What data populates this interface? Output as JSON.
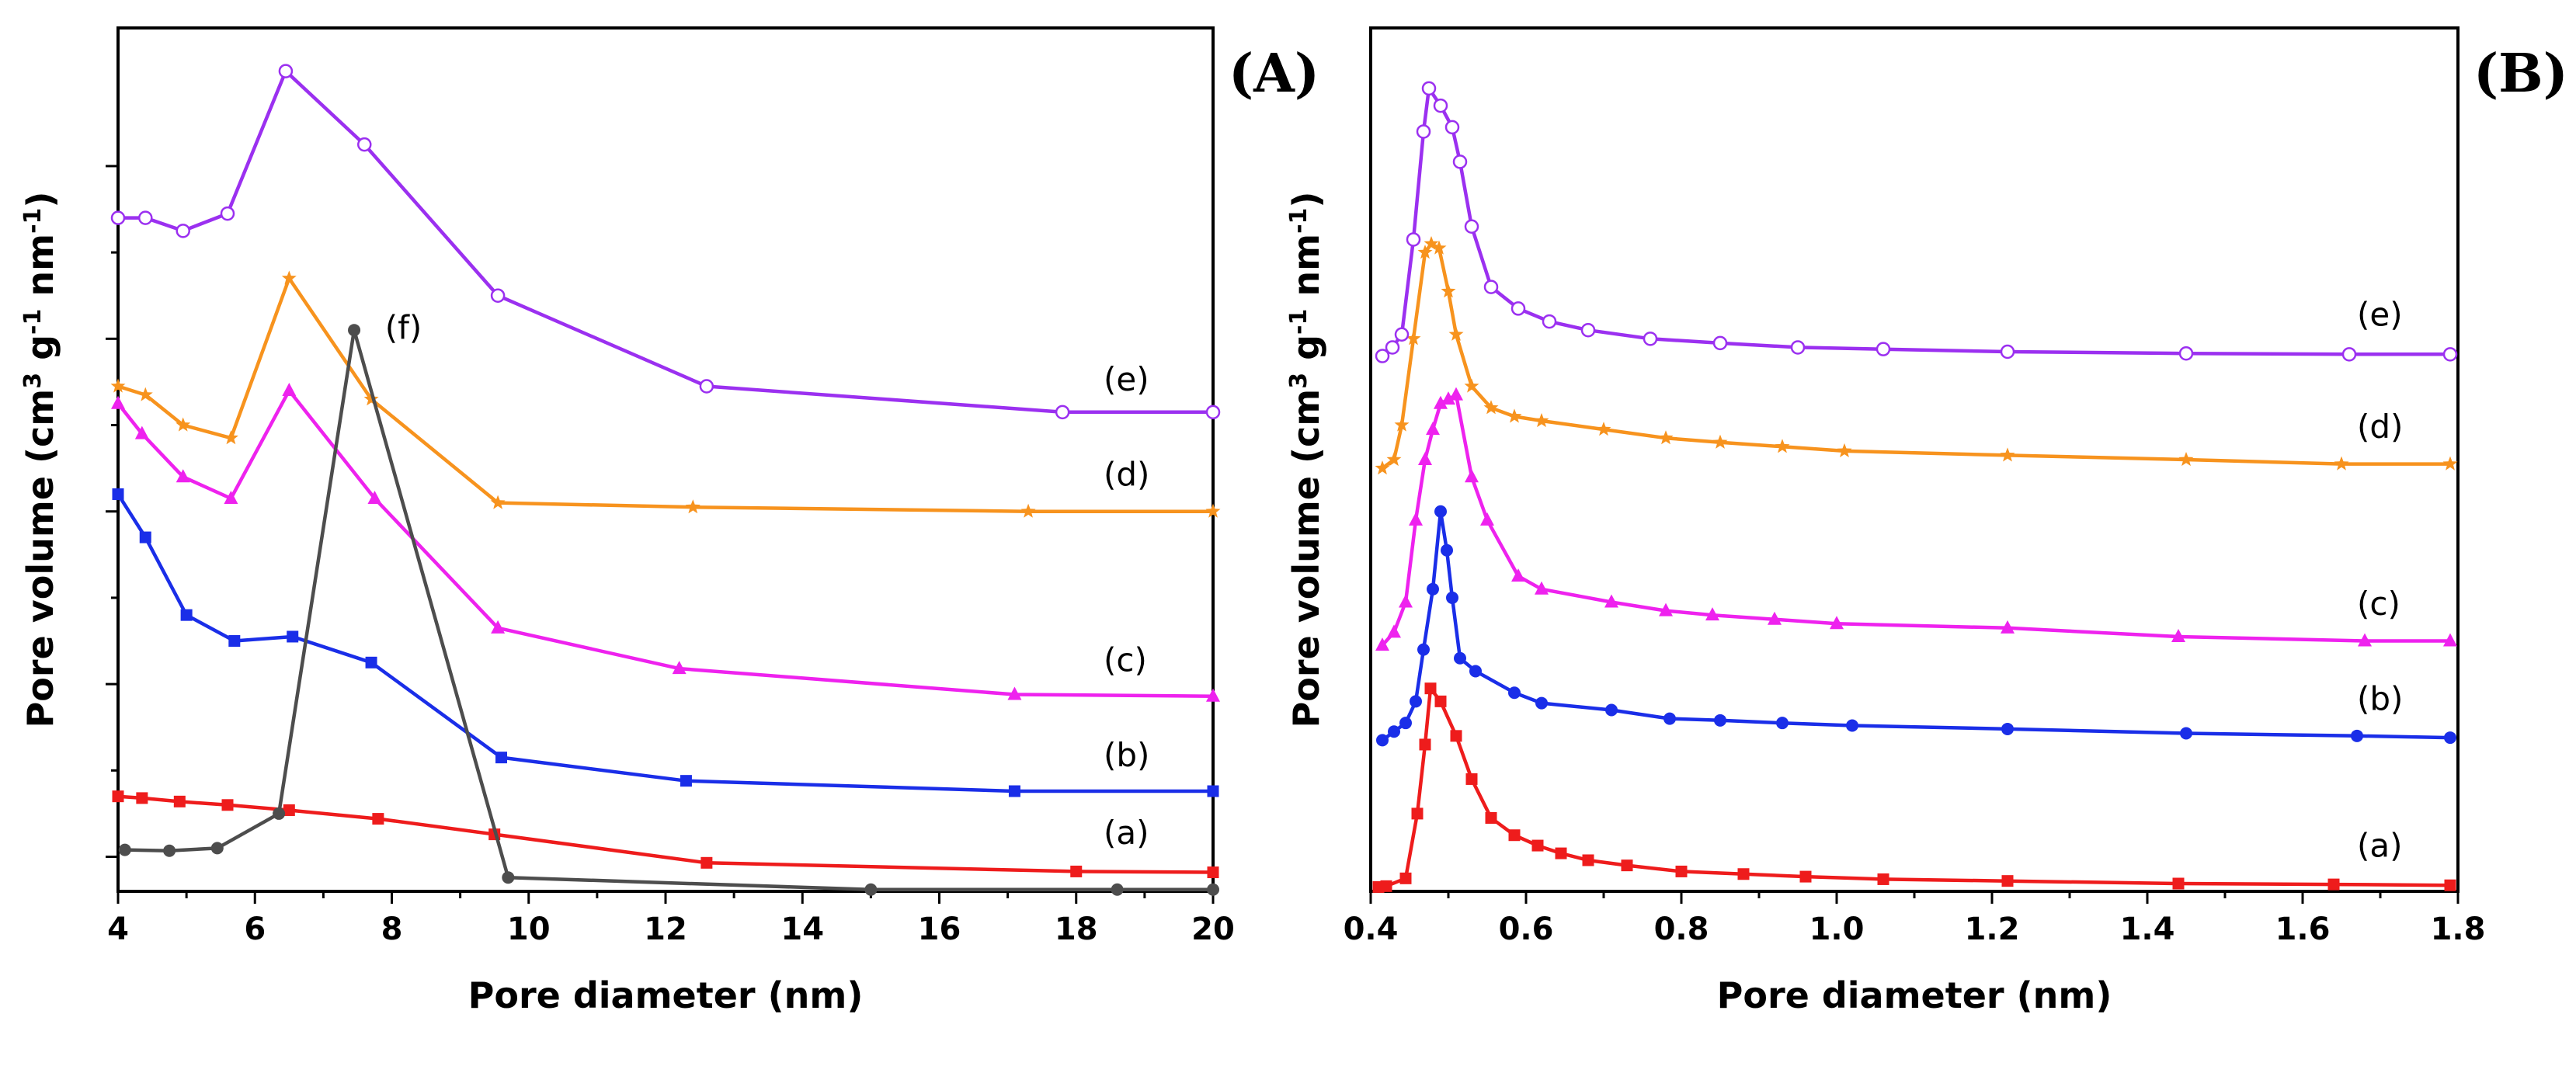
{
  "chart_data": [
    {
      "panel": "(A)",
      "type": "line",
      "xlabel": "Pore diameter (nm)",
      "ylabel": "Pore volume (cm³ g⁻¹ nm⁻¹)",
      "ylabel_parts": [
        "Pore volume (cm",
        "3",
        " g",
        "-1",
        " nm",
        "-1",
        ")"
      ],
      "xlim": [
        4,
        20
      ],
      "ylim": [
        0,
        100
      ],
      "xticks": [
        4,
        6,
        8,
        10,
        12,
        14,
        16,
        18,
        20
      ],
      "xtick_labels": [
        "4",
        "6",
        "8",
        "10",
        "12",
        "14",
        "16",
        "18",
        "20"
      ],
      "yticks_major": [
        4,
        24,
        44,
        64,
        84
      ],
      "ytick_labels_visible": false,
      "series": [
        {
          "name": "(a)",
          "color": "#ee1c1c",
          "marker": "square",
          "x": [
            4.0,
            4.35,
            4.9,
            5.6,
            6.5,
            7.8,
            9.5,
            12.6,
            18.0,
            20.0
          ],
          "y": [
            11.0,
            10.8,
            10.4,
            10.0,
            9.4,
            8.4,
            6.6,
            3.3,
            2.3,
            2.2
          ]
        },
        {
          "name": "(b)",
          "color": "#1a2ee8",
          "marker": "square",
          "x": [
            4.0,
            4.4,
            5.0,
            5.7,
            6.55,
            7.7,
            9.6,
            12.3,
            17.1,
            20.0
          ],
          "y": [
            46.0,
            41.0,
            32.0,
            29.0,
            29.5,
            26.5,
            15.5,
            12.8,
            11.6,
            11.6
          ]
        },
        {
          "name": "(c)",
          "color": "#ee22ee",
          "marker": "triangle",
          "x": [
            4.0,
            4.35,
            4.95,
            5.65,
            6.5,
            7.75,
            9.55,
            12.2,
            17.1,
            20.0
          ],
          "y": [
            56.5,
            53.0,
            48.0,
            45.5,
            58.0,
            45.5,
            30.5,
            25.8,
            22.8,
            22.6
          ]
        },
        {
          "name": "(d)",
          "color": "#f7931e",
          "marker": "star",
          "x": [
            4.0,
            4.4,
            4.95,
            5.65,
            6.5,
            7.7,
            9.55,
            12.4,
            17.3,
            20.0
          ],
          "y": [
            58.5,
            57.5,
            54.0,
            52.5,
            71.0,
            57.0,
            45.0,
            44.5,
            44.0,
            44.0
          ]
        },
        {
          "name": "(e)",
          "color": "#9b30f0",
          "marker": "open-circle",
          "x": [
            4.0,
            4.4,
            4.95,
            5.6,
            6.45,
            7.6,
            9.55,
            12.6,
            17.8,
            20.0
          ],
          "y": [
            78.0,
            78.0,
            76.5,
            78.5,
            95.0,
            86.5,
            69.0,
            58.5,
            55.5,
            55.5
          ]
        },
        {
          "name": "(f)",
          "color": "#4d4d4d",
          "marker": "circle",
          "x": [
            4.1,
            4.75,
            5.45,
            6.35,
            7.45,
            9.7,
            15.0,
            18.6,
            20.0
          ],
          "y": [
            4.8,
            4.7,
            5.0,
            9.0,
            65.0,
            1.6,
            0.2,
            0.2,
            0.2
          ]
        }
      ],
      "curve_labels": [
        {
          "text": "(a)",
          "x": 18.4,
          "y": 5.5
        },
        {
          "text": "(b)",
          "x": 18.4,
          "y": 14.5
        },
        {
          "text": "(c)",
          "x": 18.4,
          "y": 25.5
        },
        {
          "text": "(d)",
          "x": 18.4,
          "y": 47.0
        },
        {
          "text": "(e)",
          "x": 18.4,
          "y": 58.0
        },
        {
          "text": "(f)",
          "x": 7.9,
          "y": 64.0
        }
      ]
    },
    {
      "panel": "(B)",
      "type": "line",
      "xlabel": "Pore diameter (nm)",
      "ylabel": "Pore volume (cm³ g⁻¹ nm⁻¹)",
      "ylabel_parts": [
        "Pore volume (cm",
        "3",
        " g",
        "-1",
        " nm",
        "-1",
        ")"
      ],
      "xlim": [
        0.4,
        1.8
      ],
      "ylim": [
        0,
        100
      ],
      "xticks": [
        0.4,
        0.6,
        0.8,
        1.0,
        1.2,
        1.4,
        1.6,
        1.8
      ],
      "xtick_labels": [
        "0.4",
        "0.6",
        "0.8",
        "1.0",
        "1.2",
        "1.4",
        "1.6",
        "1.8"
      ],
      "ytick_labels_visible": false,
      "series": [
        {
          "name": "(a)",
          "color": "#ee1c1c",
          "marker": "square",
          "x": [
            0.41,
            0.42,
            0.445,
            0.46,
            0.47,
            0.477,
            0.49,
            0.51,
            0.53,
            0.555,
            0.585,
            0.615,
            0.645,
            0.68,
            0.73,
            0.8,
            0.88,
            0.96,
            1.06,
            1.22,
            1.44,
            1.64,
            1.79
          ],
          "y": [
            0.5,
            0.6,
            1.5,
            9.0,
            17.0,
            23.5,
            22.0,
            18.0,
            13.0,
            8.5,
            6.5,
            5.3,
            4.4,
            3.6,
            3.0,
            2.3,
            2.0,
            1.7,
            1.4,
            1.2,
            0.9,
            0.8,
            0.7
          ]
        },
        {
          "name": "(b)",
          "color": "#1a2ee8",
          "marker": "circle",
          "x": [
            0.415,
            0.43,
            0.445,
            0.458,
            0.468,
            0.48,
            0.49,
            0.498,
            0.505,
            0.515,
            0.535,
            0.585,
            0.62,
            0.71,
            0.785,
            0.85,
            0.93,
            1.02,
            1.22,
            1.45,
            1.67,
            1.79
          ],
          "y": [
            17.5,
            18.5,
            19.5,
            22.0,
            28.0,
            35.0,
            44.0,
            39.5,
            34.0,
            27.0,
            25.5,
            23.0,
            21.8,
            21.0,
            20.0,
            19.8,
            19.5,
            19.2,
            18.8,
            18.3,
            18.0,
            17.8
          ]
        },
        {
          "name": "(c)",
          "color": "#ee22ee",
          "marker": "triangle",
          "x": [
            0.415,
            0.43,
            0.445,
            0.458,
            0.47,
            0.48,
            0.49,
            0.5,
            0.51,
            0.53,
            0.55,
            0.59,
            0.62,
            0.71,
            0.78,
            0.84,
            0.92,
            1.0,
            1.22,
            1.44,
            1.68,
            1.79
          ],
          "y": [
            28.5,
            30.0,
            33.5,
            43.0,
            50.0,
            53.5,
            56.5,
            57.0,
            57.5,
            48.0,
            43.0,
            36.5,
            35.0,
            33.5,
            32.5,
            32.0,
            31.5,
            31.0,
            30.5,
            29.5,
            29.0,
            29.0
          ]
        },
        {
          "name": "(d)",
          "color": "#f7931e",
          "marker": "star",
          "x": [
            0.415,
            0.43,
            0.44,
            0.455,
            0.47,
            0.478,
            0.488,
            0.5,
            0.51,
            0.53,
            0.555,
            0.585,
            0.62,
            0.7,
            0.78,
            0.85,
            0.93,
            1.01,
            1.22,
            1.45,
            1.65,
            1.79
          ],
          "y": [
            49.0,
            50.0,
            54.0,
            64.0,
            74.0,
            75.0,
            74.5,
            69.5,
            64.5,
            58.5,
            56.0,
            55.0,
            54.5,
            53.5,
            52.5,
            52.0,
            51.5,
            51.0,
            50.5,
            50.0,
            49.5,
            49.5
          ]
        },
        {
          "name": "(e)",
          "color": "#9b30f0",
          "marker": "open-circle",
          "x": [
            0.415,
            0.428,
            0.44,
            0.455,
            0.468,
            0.475,
            0.49,
            0.505,
            0.515,
            0.53,
            0.555,
            0.59,
            0.63,
            0.68,
            0.76,
            0.85,
            0.95,
            1.06,
            1.22,
            1.45,
            1.66,
            1.79
          ],
          "y": [
            62.0,
            63.0,
            64.5,
            75.5,
            88.0,
            93.0,
            91.0,
            88.5,
            84.5,
            77.0,
            70.0,
            67.5,
            66.0,
            65.0,
            64.0,
            63.5,
            63.0,
            62.8,
            62.5,
            62.3,
            62.2,
            62.2
          ]
        }
      ],
      "curve_labels": [
        {
          "text": "(a)",
          "x": 1.67,
          "y": 4.0
        },
        {
          "text": "(b)",
          "x": 1.67,
          "y": 21.0
        },
        {
          "text": "(c)",
          "x": 1.67,
          "y": 32.0
        },
        {
          "text": "(d)",
          "x": 1.67,
          "y": 52.5
        },
        {
          "text": "(e)",
          "x": 1.67,
          "y": 65.5
        }
      ]
    }
  ]
}
